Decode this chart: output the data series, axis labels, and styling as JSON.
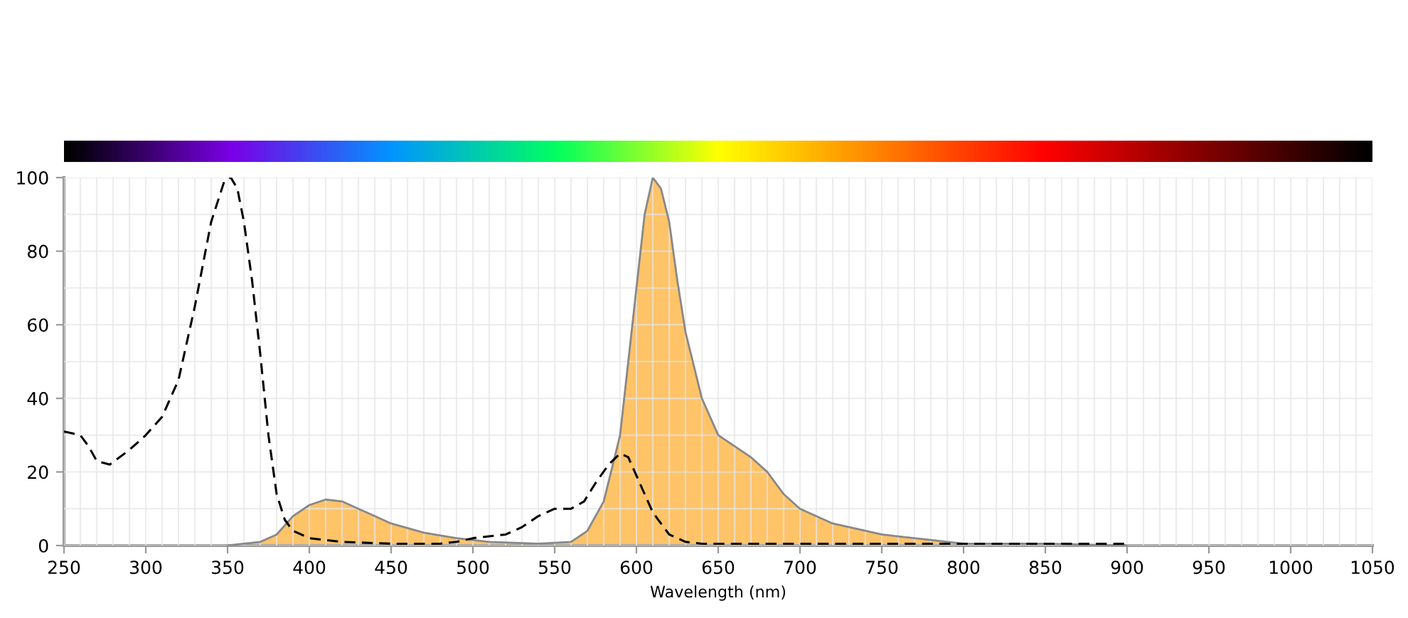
{
  "chart_data": {
    "type": "area",
    "xlabel": "Wavelength (nm)",
    "xlim": [
      250,
      1050
    ],
    "ylim": [
      0,
      100
    ],
    "xticks": [
      250,
      {
        "value": 260,
        "label": null
      },
      {
        "value": 270,
        "label": null
      },
      {
        "value": 280,
        "label": null
      },
      {
        "value": 290,
        "label": null
      },
      300,
      {
        "value": 310,
        "label": null
      },
      {
        "value": 320,
        "label": null
      },
      {
        "value": 330,
        "label": null
      },
      {
        "value": 340,
        "label": null
      },
      350,
      {
        "value": 360,
        "label": null
      },
      {
        "value": 370,
        "label": null
      },
      {
        "value": 380,
        "label": null
      },
      {
        "value": 390,
        "label": null
      },
      400,
      {
        "value": 410,
        "label": null
      },
      {
        "value": 420,
        "label": null
      },
      {
        "value": 430,
        "label": null
      },
      {
        "value": 440,
        "label": null
      },
      450,
      {
        "value": 460,
        "label": null
      },
      {
        "value": 470,
        "label": null
      },
      {
        "value": 480,
        "label": null
      },
      {
        "value": 490,
        "label": null
      },
      500,
      {
        "value": 510,
        "label": null
      },
      {
        "value": 520,
        "label": null
      },
      {
        "value": 530,
        "label": null
      },
      {
        "value": 540,
        "label": null
      },
      550,
      {
        "value": 560,
        "label": null
      },
      {
        "value": 570,
        "label": null
      },
      {
        "value": 580,
        "label": null
      },
      {
        "value": 590,
        "label": null
      },
      600,
      {
        "value": 610,
        "label": null
      },
      {
        "value": 620,
        "label": null
      },
      {
        "value": 630,
        "label": null
      },
      {
        "value": 640,
        "label": null
      },
      650,
      {
        "value": 660,
        "label": null
      },
      {
        "value": 670,
        "label": null
      },
      {
        "value": 680,
        "label": null
      },
      {
        "value": 690,
        "label": null
      },
      700,
      {
        "value": 710,
        "label": null
      },
      {
        "value": 720,
        "label": null
      },
      {
        "value": 730,
        "label": null
      },
      {
        "value": 740,
        "label": null
      },
      750,
      {
        "value": 760,
        "label": null
      },
      {
        "value": 770,
        "label": null
      },
      {
        "value": 780,
        "label": null
      },
      {
        "value": 790,
        "label": null
      },
      800,
      {
        "value": 810,
        "label": null
      },
      {
        "value": 820,
        "label": null
      },
      {
        "value": 830,
        "label": null
      },
      {
        "value": 840,
        "label": null
      },
      850,
      {
        "value": 860,
        "label": null
      },
      {
        "value": 870,
        "label": null
      },
      {
        "value": 880,
        "label": null
      },
      {
        "value": 890,
        "label": null
      },
      900,
      {
        "value": 910,
        "label": null
      },
      {
        "value": 920,
        "label": null
      },
      {
        "value": 930,
        "label": null
      },
      {
        "value": 940,
        "label": null
      },
      950,
      {
        "value": 960,
        "label": null
      },
      {
        "value": 970,
        "label": null
      },
      {
        "value": 980,
        "label": null
      },
      {
        "value": 990,
        "label": null
      },
      1000,
      {
        "value": 1010,
        "label": null
      },
      {
        "value": 1020,
        "label": null
      },
      {
        "value": 1030,
        "label": null
      },
      {
        "value": 1040,
        "label": null
      },
      1050
    ],
    "yticks": [
      0,
      {
        "value": 10,
        "label": null
      },
      20,
      {
        "value": 30,
        "label": null
      },
      40,
      {
        "value": 50,
        "label": null
      },
      60,
      {
        "value": 70,
        "label": null
      },
      80,
      {
        "value": 90,
        "label": null
      },
      100
    ],
    "grid": true,
    "legend": false,
    "series": [
      {
        "type": "line",
        "line_style": "dashed",
        "color": "#000000",
        "x": [
          250,
          260,
          265,
          270,
          278,
          290,
          300,
          310,
          320,
          330,
          340,
          348,
          352,
          356,
          360,
          365,
          370,
          375,
          380,
          385,
          390,
          400,
          420,
          450,
          480,
          490,
          500,
          520,
          530,
          540,
          550,
          560,
          568,
          575,
          583,
          590,
          595,
          600,
          610,
          620,
          630,
          640,
          700,
          800,
          850,
          900
        ],
        "values": [
          31,
          30,
          27,
          23,
          22,
          26,
          30,
          35,
          45,
          65,
          88,
          99,
          100,
          97,
          88,
          72,
          52,
          30,
          14,
          7,
          4,
          2,
          1,
          0.5,
          0.5,
          1,
          2,
          3,
          5,
          8,
          10,
          10,
          12,
          17,
          22,
          25,
          24,
          19,
          9,
          3,
          1,
          0.5,
          0.5,
          0.5,
          0.5,
          0.5
        ]
      },
      {
        "color": "#ffb84d",
        "x": [
          350,
          370,
          380,
          390,
          400,
          410,
          420,
          430,
          440,
          450,
          470,
          490,
          510,
          540,
          560,
          570,
          580,
          590,
          595,
          600,
          605,
          610,
          615,
          620,
          625,
          630,
          640,
          650,
          660,
          670,
          680,
          690,
          700,
          720,
          750,
          780,
          800,
          850,
          900
        ],
        "values": [
          0,
          1,
          3,
          8,
          11,
          12.5,
          12,
          10,
          8,
          6,
          3.5,
          2,
          1,
          0.5,
          1,
          4,
          12,
          30,
          50,
          70,
          90,
          100,
          97,
          88,
          72,
          58,
          40,
          30,
          27,
          24,
          20,
          14,
          10,
          6,
          3,
          1.5,
          0.5,
          0.5,
          0
        ]
      }
    ]
  }
}
